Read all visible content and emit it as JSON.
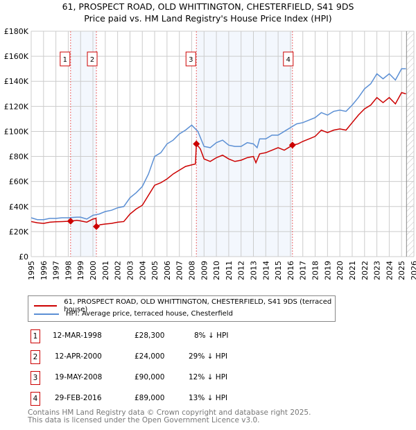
{
  "chart_data": {
    "type": "line",
    "title": "61, PROSPECT ROAD, OLD WHITTINGTON, CHESTERFIELD, S41 9DS",
    "subtitle": "Price paid vs. HM Land Registry's House Price Index (HPI)",
    "xlim": [
      1995,
      2026
    ],
    "ylim": [
      0,
      180000
    ],
    "y_ticks": [
      {
        "v": 0,
        "label": "£0"
      },
      {
        "v": 20000,
        "label": "£20K"
      },
      {
        "v": 40000,
        "label": "£40K"
      },
      {
        "v": 60000,
        "label": "£60K"
      },
      {
        "v": 80000,
        "label": "£80K"
      },
      {
        "v": 100000,
        "label": "£100K"
      },
      {
        "v": 120000,
        "label": "£120K"
      },
      {
        "v": 140000,
        "label": "£140K"
      },
      {
        "v": 160000,
        "label": "£160K"
      },
      {
        "v": 180000,
        "label": "£180K"
      }
    ],
    "x_ticks": [
      "1995",
      "1996",
      "1997",
      "1998",
      "1999",
      "2000",
      "2001",
      "2002",
      "2003",
      "2004",
      "2005",
      "2006",
      "2007",
      "2008",
      "2009",
      "2010",
      "2011",
      "2012",
      "2013",
      "2014",
      "2015",
      "2016",
      "2017",
      "2018",
      "2019",
      "2020",
      "2021",
      "2022",
      "2023",
      "2024",
      "2025",
      "2026"
    ],
    "grid": true,
    "hatched_from": 2025.4,
    "series": [
      {
        "name": "61, PROSPECT ROAD, OLD WHITTINGTON, CHESTERFIELD, S41 9DS (terraced house)",
        "color": "#cc0000",
        "points": [
          [
            1995,
            28000
          ],
          [
            1995.5,
            27000
          ],
          [
            1996,
            26500
          ],
          [
            1996.5,
            27500
          ],
          [
            1997,
            27800
          ],
          [
            1997.5,
            28000
          ],
          [
            1998.19,
            28300
          ],
          [
            1998.7,
            29000
          ],
          [
            1999,
            28500
          ],
          [
            1999.5,
            27500
          ],
          [
            2000,
            30000
          ],
          [
            2000.25,
            30500
          ],
          [
            2000.28,
            24000
          ],
          [
            2000.6,
            25500
          ],
          [
            2001,
            26000
          ],
          [
            2001.5,
            26500
          ],
          [
            2002,
            27500
          ],
          [
            2002.5,
            28000
          ],
          [
            2003,
            34000
          ],
          [
            2003.5,
            38000
          ],
          [
            2004,
            41000
          ],
          [
            2004.5,
            49000
          ],
          [
            2005,
            57000
          ],
          [
            2005.5,
            59000
          ],
          [
            2006,
            62000
          ],
          [
            2006.5,
            66000
          ],
          [
            2007,
            69000
          ],
          [
            2007.5,
            72000
          ],
          [
            2008.3,
            74000
          ],
          [
            2008.38,
            90000
          ],
          [
            2008.7,
            86000
          ],
          [
            2009,
            78000
          ],
          [
            2009.5,
            76000
          ],
          [
            2010,
            79000
          ],
          [
            2010.5,
            81000
          ],
          [
            2011,
            78000
          ],
          [
            2011.5,
            76000
          ],
          [
            2012,
            77000
          ],
          [
            2012.5,
            79000
          ],
          [
            2013,
            80000
          ],
          [
            2013.2,
            75000
          ],
          [
            2013.5,
            82000
          ],
          [
            2014,
            83000
          ],
          [
            2014.5,
            85000
          ],
          [
            2015,
            87000
          ],
          [
            2015.5,
            85000
          ],
          [
            2016.16,
            89000
          ],
          [
            2016.6,
            90000
          ],
          [
            2017,
            92000
          ],
          [
            2017.5,
            94000
          ],
          [
            2018,
            96000
          ],
          [
            2018.5,
            101000
          ],
          [
            2019,
            99000
          ],
          [
            2019.5,
            101000
          ],
          [
            2020,
            102000
          ],
          [
            2020.5,
            101000
          ],
          [
            2021,
            107000
          ],
          [
            2021.5,
            113000
          ],
          [
            2022,
            118000
          ],
          [
            2022.5,
            121000
          ],
          [
            2023,
            127000
          ],
          [
            2023.5,
            123000
          ],
          [
            2024,
            127000
          ],
          [
            2024.5,
            122000
          ],
          [
            2025,
            131000
          ],
          [
            2025.35,
            130000
          ]
        ]
      },
      {
        "name": "HPI: Average price, terraced house, Chesterfield",
        "color": "#5b8fd4",
        "points": [
          [
            1995,
            31000
          ],
          [
            1995.5,
            29500
          ],
          [
            1996,
            29500
          ],
          [
            1996.5,
            30500
          ],
          [
            1997,
            30500
          ],
          [
            1997.5,
            31000
          ],
          [
            1998,
            31000
          ],
          [
            1998.7,
            31500
          ],
          [
            1999,
            31500
          ],
          [
            1999.5,
            30000
          ],
          [
            2000,
            33000
          ],
          [
            2000.5,
            34000
          ],
          [
            2001,
            36000
          ],
          [
            2001.5,
            37000
          ],
          [
            2002,
            39000
          ],
          [
            2002.5,
            40000
          ],
          [
            2003,
            47000
          ],
          [
            2003.5,
            51000
          ],
          [
            2004,
            56000
          ],
          [
            2004.5,
            66000
          ],
          [
            2005,
            80000
          ],
          [
            2005.5,
            83000
          ],
          [
            2006,
            90000
          ],
          [
            2006.5,
            93000
          ],
          [
            2007,
            98000
          ],
          [
            2007.5,
            101000
          ],
          [
            2008,
            105000
          ],
          [
            2008.5,
            100000
          ],
          [
            2009,
            88000
          ],
          [
            2009.5,
            87000
          ],
          [
            2010,
            91000
          ],
          [
            2010.5,
            93000
          ],
          [
            2011,
            89000
          ],
          [
            2011.5,
            88000
          ],
          [
            2012,
            88000
          ],
          [
            2012.5,
            91000
          ],
          [
            2013,
            90000
          ],
          [
            2013.3,
            87000
          ],
          [
            2013.5,
            94000
          ],
          [
            2014,
            94000
          ],
          [
            2014.5,
            97000
          ],
          [
            2015,
            97000
          ],
          [
            2015.5,
            100000
          ],
          [
            2016,
            103000
          ],
          [
            2016.5,
            106000
          ],
          [
            2017,
            107000
          ],
          [
            2017.5,
            109000
          ],
          [
            2018,
            111000
          ],
          [
            2018.5,
            115000
          ],
          [
            2019,
            113000
          ],
          [
            2019.5,
            116000
          ],
          [
            2020,
            117000
          ],
          [
            2020.5,
            116000
          ],
          [
            2021,
            121000
          ],
          [
            2021.5,
            127000
          ],
          [
            2022,
            134000
          ],
          [
            2022.5,
            138000
          ],
          [
            2023,
            146000
          ],
          [
            2023.5,
            142000
          ],
          [
            2024,
            146000
          ],
          [
            2024.5,
            141000
          ],
          [
            2025,
            150000
          ],
          [
            2025.35,
            150000
          ]
        ]
      }
    ],
    "sales": [
      {
        "id": "1",
        "x": 1998.19,
        "price": 28300,
        "date": "12-MAR-1998",
        "price_label": "£28,300",
        "hpi": "8% ↓ HPI"
      },
      {
        "id": "2",
        "x": 2000.28,
        "price": 24000,
        "date": "12-APR-2000",
        "price_label": "£24,000",
        "hpi": "29% ↓ HPI"
      },
      {
        "id": "3",
        "x": 2008.38,
        "price": 90000,
        "date": "19-MAY-2008",
        "price_label": "£90,000",
        "hpi": "12% ↓ HPI"
      },
      {
        "id": "4",
        "x": 2016.16,
        "price": 89000,
        "date": "29-FEB-2016",
        "price_label": "£89,000",
        "hpi": "13% ↓ HPI"
      }
    ]
  },
  "footer": {
    "line1": "Contains HM Land Registry data © Crown copyright and database right 2025.",
    "line2": "This data is licensed under the Open Government Licence v3.0."
  }
}
